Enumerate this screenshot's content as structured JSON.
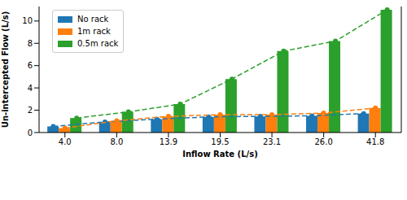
{
  "chart_data": {
    "type": "bar",
    "xlabel": "Inflow Rate (L/s)",
    "ylabel": "Un-intercepted Flow (L/s)",
    "categories": [
      "4.0",
      "8.0",
      "13.9",
      "19.5",
      "23.1",
      "26.0",
      "41.8"
    ],
    "series": [
      {
        "name": "No rack",
        "color": "#1f77b4",
        "values": [
          0.55,
          0.95,
          1.2,
          1.4,
          1.45,
          1.5,
          1.7
        ],
        "marker": "o",
        "line_style": "dashed"
      },
      {
        "name": "1m rack",
        "color": "#ff7f0e",
        "values": [
          0.4,
          1.05,
          1.45,
          1.6,
          1.6,
          1.75,
          2.2
        ],
        "marker": "o",
        "line_style": "dashed"
      },
      {
        "name": "0.5m rack",
        "color": "#2ca02c",
        "values": [
          1.3,
          1.85,
          2.55,
          4.8,
          7.3,
          8.2,
          11.0
        ],
        "marker": "o",
        "line_style": "dashed"
      }
    ],
    "ylim": [
      0,
      11.3
    ],
    "yticks": [
      0,
      2,
      4,
      6,
      8,
      10
    ],
    "legend": "upper left"
  }
}
